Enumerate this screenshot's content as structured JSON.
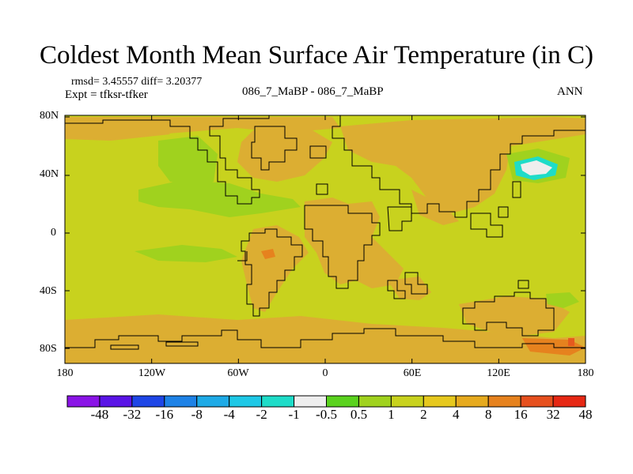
{
  "title": "Coldest Month Mean Surface Air Temperature (in C)",
  "stats_line": "rmsd= 3.45557 diff= 3.20377",
  "expt_line": "Expt = tfksr-tfker",
  "center_label": "086_7_MaBP - 086_7_MaBP",
  "season_label": "ANN",
  "y_ticks": [
    "80N",
    "40N",
    "0",
    "40S",
    "80S"
  ],
  "x_ticks": [
    "180",
    "120W",
    "60W",
    "0",
    "60E",
    "120E",
    "180"
  ],
  "colorbar": {
    "colors": [
      "#8a14e6",
      "#5a14e6",
      "#1e46e6",
      "#1e82e6",
      "#1eaae6",
      "#1ec8e6",
      "#1edcc8",
      "#eeeeee",
      "#5ad21e",
      "#a0d21e",
      "#c8d21e",
      "#e6c81e",
      "#e6aa1e",
      "#e6821e",
      "#e6501e",
      "#e62814"
    ],
    "labels": [
      "-48",
      "-32",
      "-16",
      "-8",
      "-4",
      "-2",
      "-1",
      "-0.5",
      "0.5",
      "1",
      "2",
      "4",
      "8",
      "16",
      "32",
      "48"
    ]
  },
  "map_colors": {
    "background": "#c8d21e",
    "warm": "#dcae32",
    "green": "#a0d21e",
    "cyan": "#1edcc8",
    "white": "#eeeeee",
    "hot": "#e6821e",
    "red": "#e65a1e"
  }
}
